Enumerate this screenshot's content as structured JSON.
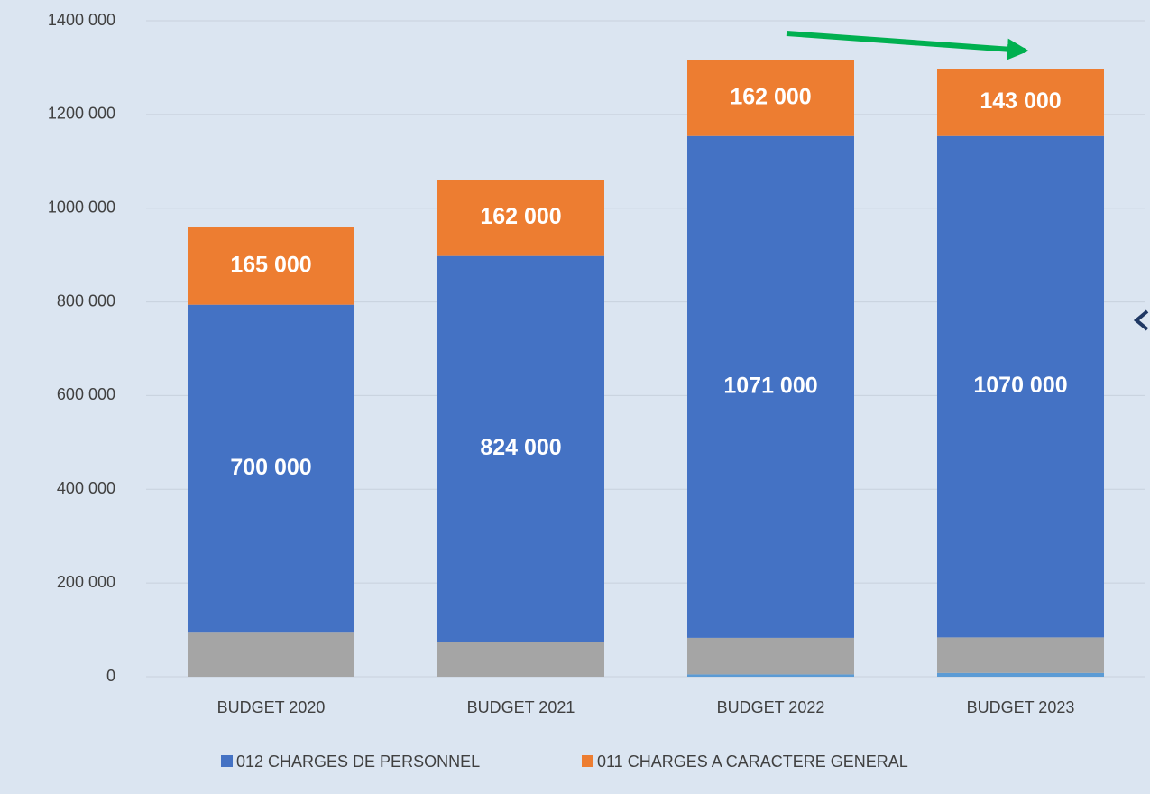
{
  "chart_data": {
    "type": "bar",
    "stacked": true,
    "categories": [
      "BUDGET 2020",
      "BUDGET 2021",
      "BUDGET 2022",
      "BUDGET 2023"
    ],
    "series": [
      {
        "color": "#5b9bd5",
        "values": [
          0,
          0,
          5000,
          8000
        ]
      },
      {
        "color": "#a5a5a5",
        "values": [
          94000,
          74000,
          78000,
          76000
        ]
      },
      {
        "name": "012 CHARGES DE PERSONNEL",
        "color": "#4472c4",
        "values": [
          700000,
          824000,
          1071000,
          1070000
        ],
        "value_labels": [
          "700 000",
          "824 000",
          "1071 000",
          "1070 000"
        ]
      },
      {
        "name": "011 CHARGES A CARACTERE GENERAL",
        "color": "#ed7d31",
        "values": [
          165000,
          162000,
          162000,
          143000
        ],
        "value_labels": [
          "165 000",
          "162 000",
          "162 000",
          "143 000"
        ]
      }
    ],
    "ylim": [
      0,
      1400000
    ],
    "yticks": [
      0,
      {
        "value": 200000,
        "label": "200 000"
      },
      {
        "value": 400000,
        "label": "400 000"
      },
      {
        "value": 600000,
        "label": "600 000"
      },
      {
        "value": 800000,
        "label": "800 000"
      },
      {
        "value": 1000000,
        "label": "1000 000"
      },
      {
        "value": 1200000,
        "label": "1200 000"
      },
      {
        "value": 1400000,
        "label": "1400 000"
      }
    ],
    "grid": true,
    "legend": "bottom"
  }
}
